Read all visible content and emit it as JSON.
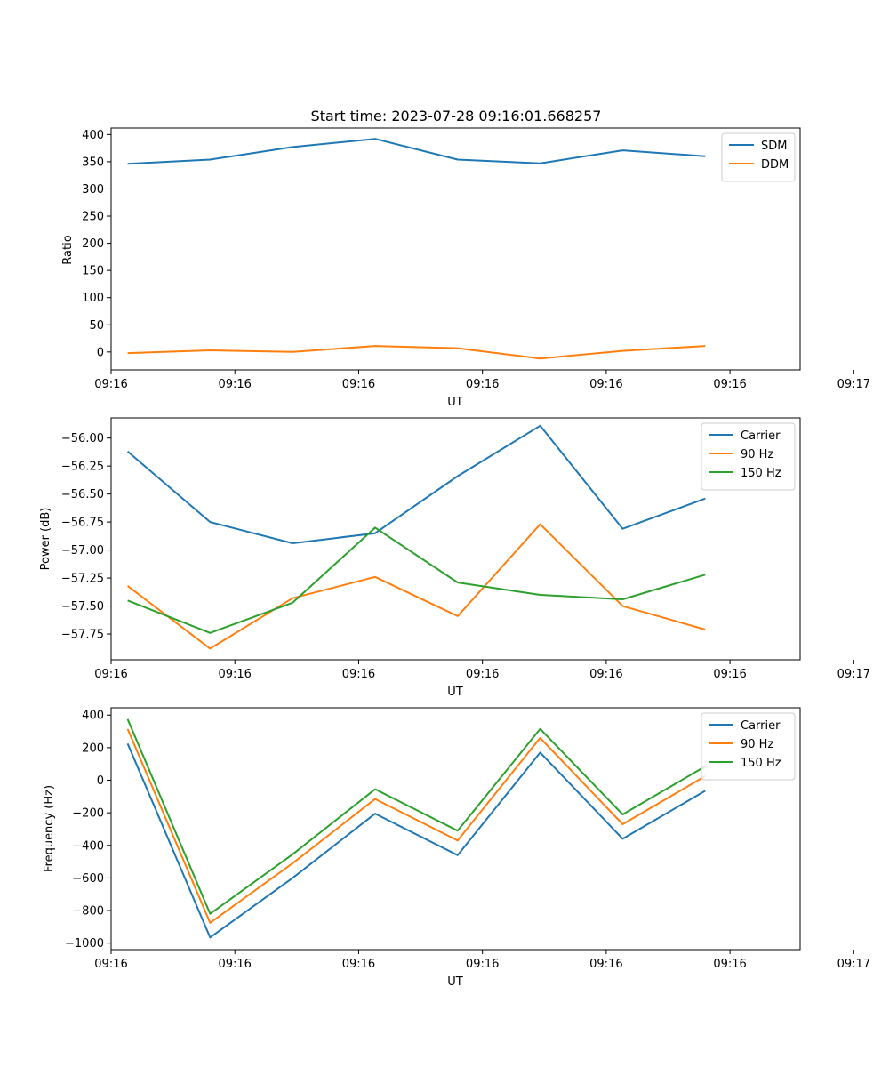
{
  "chart_data": [
    {
      "type": "line",
      "title": "Start time: 2023-07-28 09:16:01.668257",
      "xlabel": "UT",
      "ylabel": "Ratio",
      "x": [
        1,
        2,
        3,
        4,
        5,
        6,
        7,
        8
      ],
      "xlim": [
        0.8,
        9.15
      ],
      "x_ticks": [
        0.8,
        2.3,
        3.8,
        5.3,
        6.8,
        8.3,
        9.8
      ],
      "x_tick_labels": [
        "09:16",
        "09:16",
        "09:16",
        "09:16",
        "09:16",
        "09:16",
        "09:17"
      ],
      "ylim": [
        -33,
        412
      ],
      "y_ticks": [
        0,
        50,
        100,
        150,
        200,
        250,
        300,
        350,
        400
      ],
      "y_tick_labels": [
        "0",
        "50",
        "100",
        "150",
        "200",
        "250",
        "300",
        "350",
        "400"
      ],
      "legend_position": "top-right",
      "series": [
        {
          "name": "SDM",
          "color": "#1f77b4",
          "values": [
            346,
            354,
            377,
            392,
            354,
            347,
            371,
            360
          ]
        },
        {
          "name": "DDM",
          "color": "#ff7f0e",
          "values": [
            -2,
            3,
            0,
            11,
            7,
            -12,
            2,
            11
          ]
        }
      ]
    },
    {
      "type": "line",
      "title": "",
      "xlabel": "UT",
      "ylabel": "Power (dB)",
      "x": [
        1,
        2,
        3,
        4,
        5,
        6,
        7,
        8
      ],
      "xlim": [
        0.8,
        9.15
      ],
      "x_ticks": [
        0.8,
        2.3,
        3.8,
        5.3,
        6.8,
        8.3,
        9.8
      ],
      "x_tick_labels": [
        "09:16",
        "09:16",
        "09:16",
        "09:16",
        "09:16",
        "09:16",
        "09:17"
      ],
      "ylim": [
        -57.98,
        -55.82
      ],
      "y_ticks": [
        -57.75,
        -57.5,
        -57.25,
        -57.0,
        -56.75,
        -56.5,
        -56.25,
        -56.0
      ],
      "y_tick_labels": [
        "−57.75",
        "−57.50",
        "−57.25",
        "−57.00",
        "−56.75",
        "−56.50",
        "−56.25",
        "−56.00"
      ],
      "legend_position": "top-right",
      "series": [
        {
          "name": "Carrier",
          "color": "#1f77b4",
          "values": [
            -56.12,
            -56.75,
            -56.94,
            -56.85,
            -56.34,
            -55.89,
            -56.81,
            -56.54
          ]
        },
        {
          "name": "90 Hz",
          "color": "#ff7f0e",
          "values": [
            -57.32,
            -57.88,
            -57.43,
            -57.24,
            -57.59,
            -56.77,
            -57.5,
            -57.71
          ]
        },
        {
          "name": "150 Hz",
          "color": "#2ca02c",
          "values": [
            -57.45,
            -57.74,
            -57.47,
            -56.8,
            -57.29,
            -57.4,
            -57.44,
            -57.22
          ]
        }
      ]
    },
    {
      "type": "line",
      "title": "",
      "xlabel": "UT",
      "ylabel": "Frequency (Hz)",
      "x": [
        1,
        2,
        3,
        4,
        5,
        6,
        7,
        8
      ],
      "xlim": [
        0.8,
        9.15
      ],
      "x_ticks": [
        0.8,
        2.3,
        3.8,
        5.3,
        6.8,
        8.3,
        9.8
      ],
      "x_tick_labels": [
        "09:16",
        "09:16",
        "09:16",
        "09:16",
        "09:16",
        "09:16",
        "09:17"
      ],
      "ylim": [
        -1040,
        445
      ],
      "y_ticks": [
        -1000,
        -800,
        -600,
        -400,
        -200,
        0,
        200,
        400
      ],
      "y_tick_labels": [
        "−1000",
        "−800",
        "−600",
        "−400",
        "−200",
        "0",
        "200",
        "400"
      ],
      "legend_position": "top-right",
      "series": [
        {
          "name": "Carrier",
          "color": "#1f77b4",
          "values": [
            225,
            -965,
            -600,
            -205,
            -460,
            170,
            -360,
            -65
          ]
        },
        {
          "name": "90 Hz",
          "color": "#ff7f0e",
          "values": [
            315,
            -875,
            -510,
            -115,
            -370,
            260,
            -270,
            25
          ]
        },
        {
          "name": "150 Hz",
          "color": "#2ca02c",
          "values": [
            375,
            -820,
            -455,
            -55,
            -310,
            315,
            -210,
            85
          ]
        }
      ]
    }
  ]
}
